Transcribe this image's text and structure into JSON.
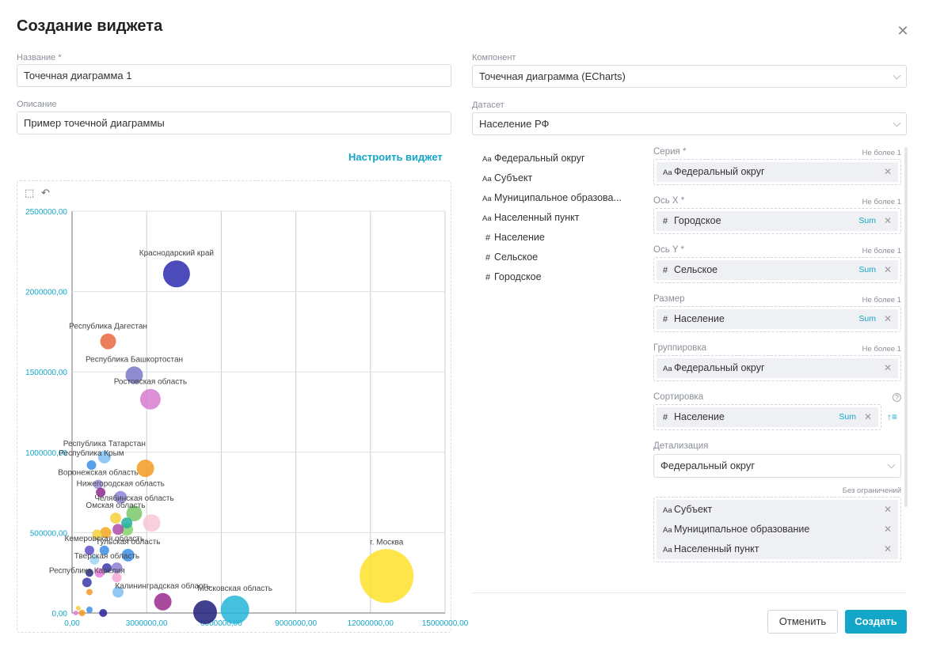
{
  "dialog": {
    "title": "Создание виджета"
  },
  "form": {
    "name_label": "Название *",
    "name_value": "Точечная диаграмма 1",
    "desc_label": "Описание",
    "desc_value": "Пример точечной диаграммы",
    "component_label": "Компонент",
    "component_value": "Точечная диаграмма (ECharts)",
    "dataset_label": "Датасет",
    "dataset_value": "Население РФ",
    "setup_link": "Настроить виджет"
  },
  "fields": [
    {
      "type": "text",
      "icon": "Aa",
      "label": "Федеральный округ"
    },
    {
      "type": "text",
      "icon": "Aa",
      "label": "Субъект"
    },
    {
      "type": "text",
      "icon": "Aa",
      "label": "Муниципальное образова..."
    },
    {
      "type": "text",
      "icon": "Aa",
      "label": "Населенный пункт"
    },
    {
      "type": "number",
      "icon": "#",
      "label": "Население"
    },
    {
      "type": "number",
      "icon": "#",
      "label": "Сельское"
    },
    {
      "type": "number",
      "icon": "#",
      "label": "Городское"
    }
  ],
  "config": {
    "series": {
      "label": "Серия *",
      "note": "Не более 1",
      "chip": {
        "icon": "Aa",
        "text": "Федеральный округ"
      }
    },
    "x_axis": {
      "label": "Ось X *",
      "note": "Не более 1",
      "chip": {
        "icon": "#",
        "text": "Городское",
        "agg": "Sum"
      }
    },
    "y_axis": {
      "label": "Ось Y *",
      "note": "Не более 1",
      "chip": {
        "icon": "#",
        "text": "Сельское",
        "agg": "Sum"
      }
    },
    "size": {
      "label": "Размер",
      "note": "Не более 1",
      "chip": {
        "icon": "#",
        "text": "Население",
        "agg": "Sum"
      }
    },
    "grouping": {
      "label": "Группировка",
      "note": "Не более 1",
      "chip": {
        "icon": "Aa",
        "text": "Федеральный округ"
      }
    },
    "sorting": {
      "label": "Сортировка",
      "help": "?",
      "chip": {
        "icon": "#",
        "text": "Население",
        "agg": "Sum"
      }
    },
    "detail": {
      "label": "Детализация",
      "select_value": "Федеральный округ",
      "note": "Без ограничений",
      "chips": [
        {
          "icon": "Aa",
          "text": "Субъект"
        },
        {
          "icon": "Aa",
          "text": "Муниципальное образование"
        },
        {
          "icon": "Aa",
          "text": "Населенный пункт"
        }
      ]
    }
  },
  "buttons": {
    "cancel": "Отменить",
    "create": "Создать"
  },
  "chart_data": {
    "type": "scatter",
    "title": "",
    "xlabel": "",
    "ylabel": "",
    "xlim": [
      0,
      15000000
    ],
    "ylim": [
      0,
      2500000
    ],
    "x_ticks": [
      "0,00",
      "3000000,00",
      "6000000,00",
      "9000000,00",
      "12000000,00",
      "15000000,00"
    ],
    "y_ticks": [
      "0,00",
      "500000,00",
      "1000000,00",
      "1500000,00",
      "2000000,00",
      "2500000,00"
    ],
    "grid": true,
    "points": [
      {
        "label": "Краснодарский край",
        "x": 4200000,
        "y": 2110000,
        "r": 17,
        "color": "#2b2bb0"
      },
      {
        "label": "Республика Дагестан",
        "x": 1450000,
        "y": 1690000,
        "r": 10,
        "color": "#e8693e"
      },
      {
        "label": "Республика Башкортостан",
        "x": 2500000,
        "y": 1480000,
        "r": 11,
        "color": "#7b78c9"
      },
      {
        "label": "Ростовская область",
        "x": 3150000,
        "y": 1330000,
        "r": 13,
        "color": "#d77bd1"
      },
      {
        "label": "Республика Татарстан",
        "x": 1300000,
        "y": 970000,
        "r": 8,
        "color": "#7fbff2"
      },
      {
        "label": "",
        "x": 2950000,
        "y": 900000,
        "r": 11,
        "color": "#f59a1f"
      },
      {
        "label": "Республика Крым",
        "x": 780000,
        "y": 920000,
        "r": 6,
        "color": "#3c8fe6"
      },
      {
        "label": "Воронежская область",
        "x": 1050000,
        "y": 800000,
        "r": 6,
        "color": "#9b8fd8"
      },
      {
        "label": "Нижегородская область",
        "x": 1950000,
        "y": 720000,
        "r": 8,
        "color": "#8c85d6"
      },
      {
        "label": "",
        "x": 1150000,
        "y": 750000,
        "r": 6,
        "color": "#8e2a8e"
      },
      {
        "label": "Челябинская область",
        "x": 2500000,
        "y": 620000,
        "r": 10,
        "color": "#7bc86a"
      },
      {
        "label": "",
        "x": 3200000,
        "y": 560000,
        "r": 11,
        "color": "#f7c8d6"
      },
      {
        "label": "Омская область",
        "x": 1750000,
        "y": 590000,
        "r": 7,
        "color": "#f5d03b"
      },
      {
        "label": "",
        "x": 2200000,
        "y": 560000,
        "r": 7,
        "color": "#25b0a0"
      },
      {
        "label": "",
        "x": 1850000,
        "y": 520000,
        "r": 7,
        "color": "#b04ca8"
      },
      {
        "label": "",
        "x": 2200000,
        "y": 520000,
        "r": 8,
        "color": "#86d46d"
      },
      {
        "label": "",
        "x": 1350000,
        "y": 500000,
        "r": 7,
        "color": "#f3a81f"
      },
      {
        "label": "",
        "x": 1000000,
        "y": 490000,
        "r": 6,
        "color": "#f5d03b"
      },
      {
        "label": "Кемеровская область",
        "x": 1300000,
        "y": 390000,
        "r": 6,
        "color": "#3c8fe6"
      },
      {
        "label": "",
        "x": 700000,
        "y": 390000,
        "r": 6,
        "color": "#5a4fc9"
      },
      {
        "label": "Тульская область",
        "x": 2250000,
        "y": 360000,
        "r": 8,
        "color": "#3c8fe6"
      },
      {
        "label": "",
        "x": 900000,
        "y": 330000,
        "r": 6,
        "color": "#9ed5f5"
      },
      {
        "label": "Тверская область",
        "x": 1400000,
        "y": 280000,
        "r": 6,
        "color": "#3a3aa8"
      },
      {
        "label": "",
        "x": 1800000,
        "y": 280000,
        "r": 7,
        "color": "#8a7fd3"
      },
      {
        "label": "",
        "x": 1100000,
        "y": 250000,
        "r": 6,
        "color": "#e87adf"
      },
      {
        "label": "",
        "x": 700000,
        "y": 250000,
        "r": 5,
        "color": "#2a2a8c"
      },
      {
        "label": "",
        "x": 1800000,
        "y": 220000,
        "r": 6,
        "color": "#f4a7d4"
      },
      {
        "label": "Республика Карелия",
        "x": 600000,
        "y": 190000,
        "r": 6,
        "color": "#3a3aa8"
      },
      {
        "label": "",
        "x": 1850000,
        "y": 130000,
        "r": 7,
        "color": "#7fbff2"
      },
      {
        "label": "",
        "x": 700000,
        "y": 130000,
        "r": 4,
        "color": "#f59a1f"
      },
      {
        "label": "Калининградская область",
        "x": 3650000,
        "y": 70000,
        "r": 11,
        "color": "#9b2a8e"
      },
      {
        "label": "",
        "x": 5350000,
        "y": 5000,
        "r": 15,
        "color": "#1f1f7a"
      },
      {
        "label": "Московская область",
        "x": 6550000,
        "y": 20000,
        "r": 18,
        "color": "#25b6d9"
      },
      {
        "label": "г. Москва",
        "x": 12650000,
        "y": 230000,
        "r": 34,
        "color": "#fde02a"
      },
      {
        "label": "",
        "x": 1250000,
        "y": 0,
        "r": 5,
        "color": "#2a1f9c"
      },
      {
        "label": "",
        "x": 700000,
        "y": 20000,
        "r": 4,
        "color": "#3c8fe6"
      },
      {
        "label": "",
        "x": 400000,
        "y": 0,
        "r": 4,
        "color": "#f59a1f"
      },
      {
        "label": "",
        "x": 250000,
        "y": 30000,
        "r": 3,
        "color": "#f5d03b"
      },
      {
        "label": "",
        "x": 150000,
        "y": 0,
        "r": 3,
        "color": "#e87adf"
      }
    ]
  }
}
